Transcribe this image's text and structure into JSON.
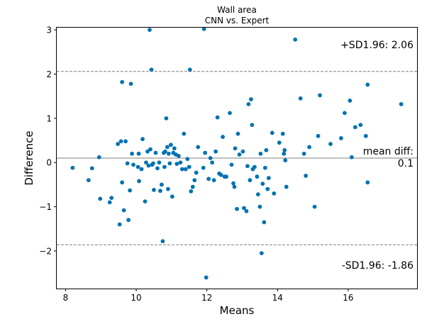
{
  "chart_data": {
    "type": "scatter",
    "title": "Wall area",
    "subtitle": "CNN vs. Expert",
    "xlabel": "Means",
    "ylabel": "Difference",
    "xlim": [
      7.75,
      17.95
    ],
    "ylim": [
      -2.85,
      3.05
    ],
    "xticks": [
      8,
      10,
      12,
      14,
      16
    ],
    "yticks": [
      -2,
      -1,
      0,
      1,
      2,
      3
    ],
    "grid": false,
    "point_color": "#0072B2",
    "reference_lines": [
      {
        "name": "mean",
        "value": 0.1,
        "style": "solid",
        "color": "#7f7f7f",
        "label_top": "mean diff:",
        "label_bottom": "0.1"
      },
      {
        "name": "upper",
        "value": 2.06,
        "style": "dashed",
        "color": "#7f7f7f",
        "label": "+SD1.96: 2.06"
      },
      {
        "name": "lower",
        "value": -1.86,
        "style": "dashed",
        "color": "#7f7f7f",
        "label": "-SD1.96: -1.86"
      }
    ],
    "points": [
      [
        8.2,
        -0.12
      ],
      [
        8.65,
        -0.4
      ],
      [
        8.75,
        -0.13
      ],
      [
        8.95,
        0.12
      ],
      [
        8.98,
        -0.82
      ],
      [
        9.25,
        -0.9
      ],
      [
        9.3,
        -0.8
      ],
      [
        9.48,
        0.42
      ],
      [
        9.53,
        -1.4
      ],
      [
        9.57,
        0.48
      ],
      [
        9.6,
        -0.45
      ],
      [
        9.6,
        1.82
      ],
      [
        9.65,
        -1.08
      ],
      [
        9.7,
        0.48
      ],
      [
        9.75,
        -0.02
      ],
      [
        9.78,
        -1.3
      ],
      [
        9.82,
        -0.63
      ],
      [
        9.85,
        1.78
      ],
      [
        9.88,
        0.2
      ],
      [
        9.92,
        -0.05
      ],
      [
        10.05,
        -0.1
      ],
      [
        10.07,
        0.2
      ],
      [
        10.08,
        -0.42
      ],
      [
        10.15,
        -0.15
      ],
      [
        10.18,
        0.53
      ],
      [
        10.25,
        -0.88
      ],
      [
        10.28,
        0.0
      ],
      [
        10.32,
        0.25
      ],
      [
        10.35,
        -0.07
      ],
      [
        10.38,
        3.0
      ],
      [
        10.4,
        0.3
      ],
      [
        10.43,
        2.1
      ],
      [
        10.45,
        -0.05
      ],
      [
        10.48,
        -0.02
      ],
      [
        10.5,
        -0.62
      ],
      [
        10.55,
        0.22
      ],
      [
        10.6,
        -0.13
      ],
      [
        10.65,
        0.0
      ],
      [
        10.68,
        -0.64
      ],
      [
        10.72,
        -0.5
      ],
      [
        10.75,
        -1.78
      ],
      [
        10.78,
        0.22
      ],
      [
        10.8,
        -0.1
      ],
      [
        10.82,
        0.25
      ],
      [
        10.85,
        1.0
      ],
      [
        10.88,
        0.35
      ],
      [
        10.9,
        -0.6
      ],
      [
        10.92,
        0.2
      ],
      [
        10.95,
        -0.02
      ],
      [
        10.98,
        0.4
      ],
      [
        11.02,
        -0.77
      ],
      [
        11.05,
        0.22
      ],
      [
        11.08,
        0.32
      ],
      [
        11.12,
        0.18
      ],
      [
        11.15,
        -0.03
      ],
      [
        11.2,
        0.15
      ],
      [
        11.25,
        0.0
      ],
      [
        11.3,
        -0.15
      ],
      [
        11.35,
        0.65
      ],
      [
        11.4,
        -0.15
      ],
      [
        11.45,
        0.08
      ],
      [
        11.5,
        -0.1
      ],
      [
        11.52,
        2.1
      ],
      [
        11.55,
        -0.65
      ],
      [
        11.6,
        -0.55
      ],
      [
        11.65,
        -0.4
      ],
      [
        11.7,
        -0.23
      ],
      [
        11.75,
        0.35
      ],
      [
        11.9,
        -0.12
      ],
      [
        11.92,
        3.02
      ],
      [
        11.95,
        0.22
      ],
      [
        11.98,
        -2.6
      ],
      [
        12.05,
        -0.37
      ],
      [
        12.1,
        0.1
      ],
      [
        12.15,
        0.0
      ],
      [
        12.2,
        -0.4
      ],
      [
        12.25,
        0.25
      ],
      [
        12.3,
        1.02
      ],
      [
        12.35,
        -0.25
      ],
      [
        12.4,
        -0.28
      ],
      [
        12.45,
        0.58
      ],
      [
        12.5,
        -0.32
      ],
      [
        12.55,
        -0.32
      ],
      [
        12.65,
        1.12
      ],
      [
        12.7,
        -0.05
      ],
      [
        12.75,
        -0.47
      ],
      [
        12.78,
        -0.55
      ],
      [
        12.8,
        0.32
      ],
      [
        12.85,
        -1.05
      ],
      [
        12.88,
        0.65
      ],
      [
        12.92,
        0.18
      ],
      [
        13.02,
        0.25
      ],
      [
        13.05,
        -1.03
      ],
      [
        13.12,
        -1.1
      ],
      [
        13.15,
        -0.08
      ],
      [
        13.18,
        1.32
      ],
      [
        13.22,
        -0.4
      ],
      [
        13.25,
        1.43
      ],
      [
        13.28,
        0.85
      ],
      [
        13.3,
        -0.15
      ],
      [
        13.35,
        -0.1
      ],
      [
        13.42,
        -0.32
      ],
      [
        13.45,
        -0.72
      ],
      [
        13.5,
        -1.0
      ],
      [
        13.52,
        0.2
      ],
      [
        13.55,
        -2.05
      ],
      [
        13.58,
        -0.48
      ],
      [
        13.62,
        -1.35
      ],
      [
        13.65,
        -0.12
      ],
      [
        13.68,
        0.28
      ],
      [
        13.72,
        -0.6
      ],
      [
        13.75,
        -0.35
      ],
      [
        13.85,
        0.67
      ],
      [
        13.9,
        -0.7
      ],
      [
        14.05,
        0.45
      ],
      [
        14.15,
        0.65
      ],
      [
        14.18,
        0.2
      ],
      [
        14.2,
        0.28
      ],
      [
        14.22,
        0.05
      ],
      [
        14.25,
        -0.55
      ],
      [
        14.5,
        2.78
      ],
      [
        14.65,
        1.45
      ],
      [
        14.75,
        0.2
      ],
      [
        14.8,
        -0.3
      ],
      [
        14.9,
        0.35
      ],
      [
        15.05,
        -1.0
      ],
      [
        15.15,
        0.6
      ],
      [
        15.2,
        1.52
      ],
      [
        15.5,
        0.42
      ],
      [
        15.8,
        0.55
      ],
      [
        15.9,
        1.12
      ],
      [
        16.05,
        1.4
      ],
      [
        16.1,
        0.12
      ],
      [
        16.2,
        0.8
      ],
      [
        16.35,
        0.85
      ],
      [
        16.5,
        0.6
      ],
      [
        16.55,
        1.76
      ],
      [
        16.55,
        -0.45
      ],
      [
        17.5,
        1.32
      ]
    ]
  }
}
